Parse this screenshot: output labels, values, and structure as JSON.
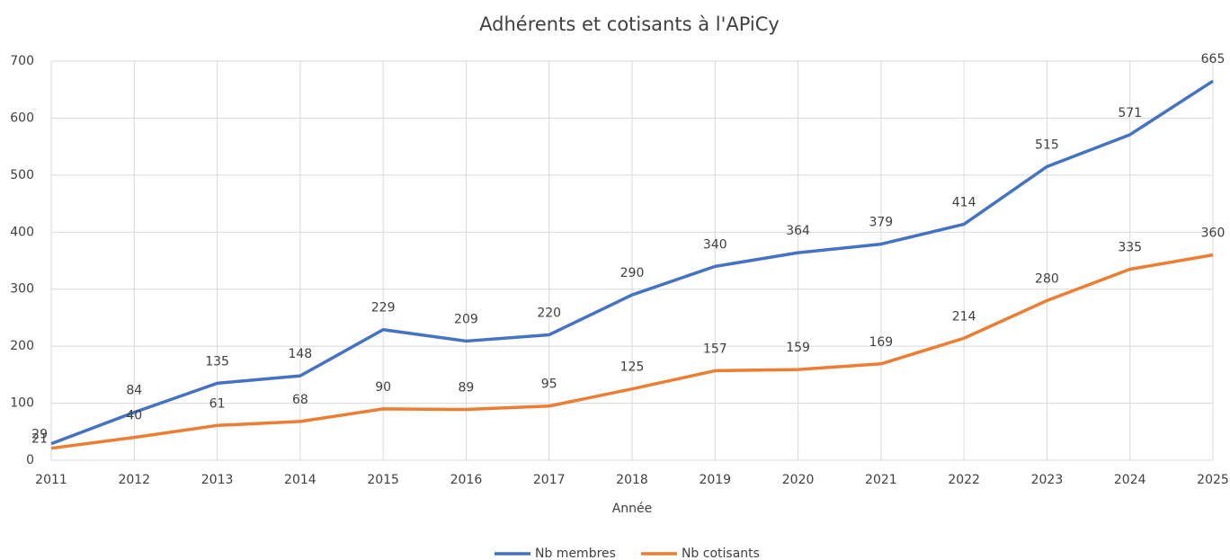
{
  "chart_data": {
    "type": "line",
    "title": "Adhérents et cotisants à l'APiCy",
    "x_label": "Année",
    "x": [
      2011,
      2012,
      2013,
      2014,
      2015,
      2016,
      2017,
      2018,
      2019,
      2020,
      2021,
      2022,
      2023,
      2024,
      2025
    ],
    "xlim": [
      2011,
      2025
    ],
    "xticks": [
      2011,
      2012,
      2013,
      2014,
      2015,
      2016,
      2017,
      2018,
      2019,
      2020,
      2021,
      2022,
      2023,
      2024,
      2025
    ],
    "ylim": [
      0,
      700
    ],
    "yticks": [
      0,
      100,
      200,
      300,
      400,
      500,
      600,
      700
    ],
    "grid": true,
    "legend": "bottom",
    "series": [
      {
        "name": "Nb membres",
        "color": "#4472c4",
        "values": [
          29,
          84,
          135,
          148,
          229,
          209,
          220,
          290,
          340,
          364,
          379,
          414,
          515,
          571,
          665
        ]
      },
      {
        "name": "Nb cotisants",
        "color": "#ed7d31",
        "values": [
          21,
          40,
          61,
          68,
          90,
          89,
          95,
          125,
          157,
          159,
          169,
          214,
          280,
          335,
          360
        ]
      }
    ]
  }
}
